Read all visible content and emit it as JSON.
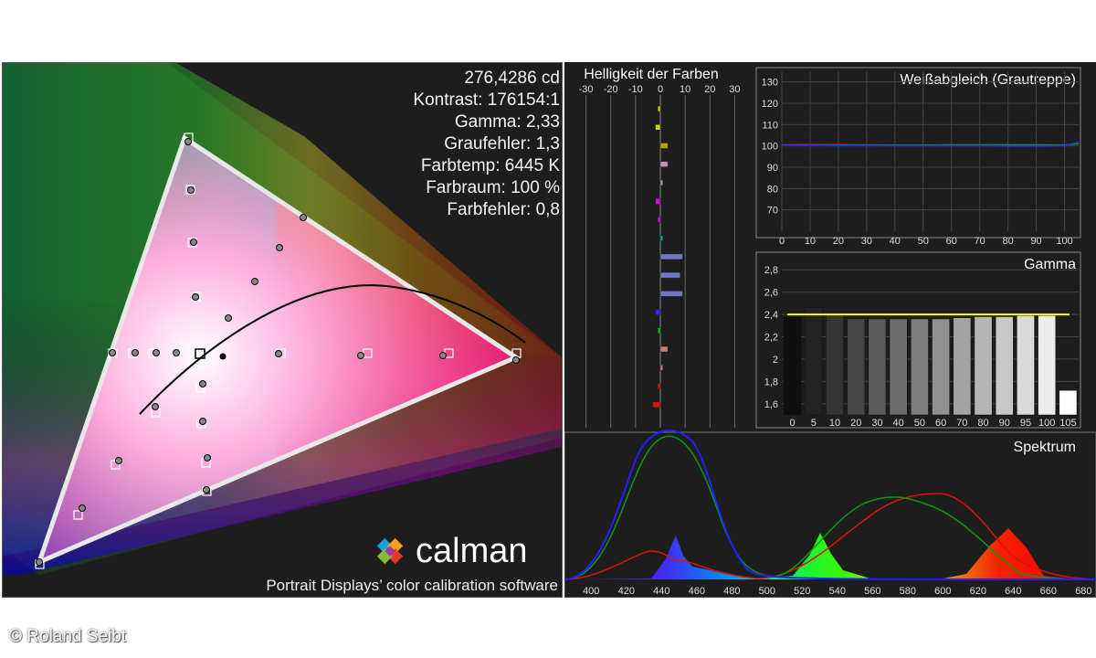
{
  "stats": {
    "luminance": "276,4286 cd",
    "contrast": "Kontrast: 176154:1",
    "gamma": "Gamma: 2,33",
    "gray_error": "Graufehler: 1,3",
    "color_temp": "Farbtemp: 6445 K",
    "gamut": "Farbraum: 100 %",
    "color_error": "Farbfehler: 0,8"
  },
  "branding": {
    "logo_text": "calman",
    "tagline": "Portrait Displays’ color calibration software"
  },
  "copyright": "© Roland Seibt",
  "chart_data": [
    {
      "type": "bar",
      "title": "Helligkeit der Farben",
      "orientation": "horizontal",
      "xticks": [
        "-30",
        "-20",
        "-10",
        "0",
        "10",
        "20",
        "30"
      ],
      "xlim": [
        -35,
        35
      ],
      "bars": [
        {
          "color": "#d6d200",
          "value": -1
        },
        {
          "color": "#d6d200",
          "value": -2
        },
        {
          "color": "#b9a400",
          "value": 3
        },
        {
          "color": "#c48fb0",
          "value": 3
        },
        {
          "color": "#c48fb0",
          "value": 1
        },
        {
          "color": "#e000e0",
          "value": -2
        },
        {
          "color": "#e000e0",
          "value": -1
        },
        {
          "color": "#00a8a8",
          "value": 1
        },
        {
          "color": "#7575c8",
          "value": 9
        },
        {
          "color": "#7575c8",
          "value": 8
        },
        {
          "color": "#7575c8",
          "value": 9
        },
        {
          "color": "#2828e8",
          "value": -2
        },
        {
          "color": "#00d000",
          "value": -1
        },
        {
          "color": "#cc7a7a",
          "value": 3
        },
        {
          "color": "#cc7a7a",
          "value": 1
        },
        {
          "color": "#e01010",
          "value": -1
        },
        {
          "color": "#e01010",
          "value": -3
        }
      ]
    },
    {
      "type": "line",
      "title": "Weißabgleich (Grautreppe)",
      "x": [
        0,
        10,
        20,
        30,
        40,
        50,
        60,
        70,
        80,
        90,
        100,
        105
      ],
      "xticks": [
        "0",
        "10",
        "20",
        "30",
        "40",
        "50",
        "60",
        "70",
        "80",
        "90",
        "100"
      ],
      "yticks": [
        "70",
        "80",
        "90",
        "100",
        "110",
        "120",
        "130"
      ],
      "ylim": [
        60,
        135
      ],
      "series": [
        {
          "color": "#e01010",
          "values": [
            100.5,
            100.6,
            100.6,
            100.5,
            100.4,
            100.4,
            100.3,
            100.3,
            100.2,
            100.2,
            100.3,
            101.5
          ]
        },
        {
          "color": "#00a000",
          "values": [
            100.3,
            100.3,
            100.4,
            100.4,
            100.4,
            100.4,
            100.5,
            100.5,
            100.5,
            100.5,
            100.4,
            101.0
          ]
        },
        {
          "color": "#2020ff",
          "values": [
            100.2,
            100.2,
            100.1,
            100.1,
            100.0,
            100.0,
            100.0,
            100.0,
            99.9,
            99.9,
            100.0,
            102.0
          ]
        }
      ]
    },
    {
      "type": "bar",
      "title": "Gamma",
      "categories": [
        "0",
        "5",
        "10",
        "20",
        "30",
        "40",
        "50",
        "60",
        "70",
        "80",
        "90",
        "95",
        "100",
        "105"
      ],
      "values": [
        2.38,
        2.46,
        2.4,
        2.36,
        2.36,
        2.36,
        2.36,
        2.36,
        2.37,
        2.38,
        2.38,
        2.39,
        2.39,
        1.72
      ],
      "target": 2.4,
      "yticks": [
        "1,6",
        "1,8",
        "2",
        "2,2",
        "2,4",
        "2,6",
        "2,8"
      ],
      "ylim": [
        1.5,
        2.9
      ]
    },
    {
      "type": "area",
      "title": "Spektrum",
      "xticks": [
        "400",
        "420",
        "440",
        "460",
        "480",
        "500",
        "520",
        "540",
        "560",
        "580",
        "600",
        "620",
        "640",
        "660",
        "680"
      ],
      "xlim": [
        390,
        685
      ]
    }
  ]
}
